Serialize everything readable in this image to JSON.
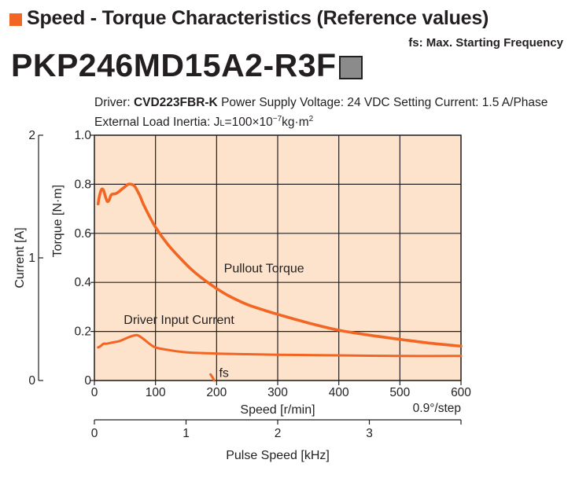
{
  "header": {
    "title": "Speed - Torque Characteristics (Reference values)",
    "fs_note": "fs: Max. Starting Frequency",
    "model": "PKP246MD15A2-R3F"
  },
  "conditions": {
    "driver_label": "Driver:",
    "driver_name": "CVD223FBR-K",
    "voltage": "Power Supply Voltage: 24 VDC",
    "current": "Setting Current: 1.5 A/Phase",
    "inertia_prefix": "External Load Inertia: J",
    "inertia_sub": "L",
    "inertia_value": "=100×10",
    "inertia_exp": "−7",
    "inertia_unit": "kg·m",
    "inertia_unit_exp": "2"
  },
  "chart_data": {
    "type": "line",
    "xlabel": "Speed [r/min]",
    "ylabel": "Torque [N·m]",
    "y2label": "Current [A]",
    "x2label": "Pulse Speed [kHz]",
    "x2_unit_note": "0.9°/step",
    "xlim": [
      0,
      600
    ],
    "ylim": [
      0,
      1.0
    ],
    "y2lim": [
      0,
      2
    ],
    "x2lim": [
      0,
      4
    ],
    "x_ticks": [
      0,
      100,
      200,
      300,
      400,
      500,
      600
    ],
    "y_ticks": [
      "0",
      "0.2",
      "0.4",
      "0.6",
      "0.8",
      "1.0"
    ],
    "y2_ticks": [
      0,
      1,
      2
    ],
    "x2_ticks": [
      0,
      1,
      2,
      3
    ],
    "grid": true,
    "colors": {
      "curve": "#f26522",
      "background": "#fde3cc",
      "grid": "#231f20"
    },
    "series": [
      {
        "name": "Pullout Torque",
        "x": [
          6,
          9,
          12,
          15,
          18,
          21,
          24,
          27,
          30,
          35,
          40,
          45,
          50,
          55,
          60,
          65,
          70,
          75,
          80,
          90,
          100,
          120,
          140,
          160,
          180,
          200,
          220,
          250,
          280,
          300,
          350,
          400,
          450,
          500,
          550,
          600
        ],
        "y": [
          0.72,
          0.76,
          0.78,
          0.775,
          0.75,
          0.73,
          0.735,
          0.755,
          0.76,
          0.762,
          0.77,
          0.78,
          0.79,
          0.8,
          0.8,
          0.795,
          0.775,
          0.75,
          0.72,
          0.67,
          0.625,
          0.555,
          0.5,
          0.45,
          0.41,
          0.375,
          0.345,
          0.31,
          0.285,
          0.27,
          0.235,
          0.205,
          0.185,
          0.168,
          0.152,
          0.14
        ]
      },
      {
        "name": "Driver Input Current",
        "axis": "y2",
        "x": [
          6,
          10,
          15,
          20,
          30,
          40,
          50,
          60,
          70,
          80,
          90,
          100,
          120,
          150,
          200,
          250,
          300,
          400,
          500,
          600
        ],
        "y": [
          0.27,
          0.28,
          0.3,
          0.3,
          0.31,
          0.32,
          0.34,
          0.36,
          0.37,
          0.34,
          0.3,
          0.27,
          0.25,
          0.23,
          0.22,
          0.215,
          0.21,
          0.205,
          0.2,
          0.2
        ]
      },
      {
        "name": "fs",
        "x": [
          190,
          192,
          194,
          196
        ],
        "y": [
          0.025,
          0.018,
          0.01,
          0.0
        ]
      }
    ],
    "annotations": [
      {
        "text": "Pullout Torque",
        "x": 212,
        "y": 0.44
      },
      {
        "text": "Driver Input Current",
        "x": 48,
        "y": 0.23
      },
      {
        "text": "fs",
        "x": 204,
        "y": 0.015
      }
    ]
  }
}
